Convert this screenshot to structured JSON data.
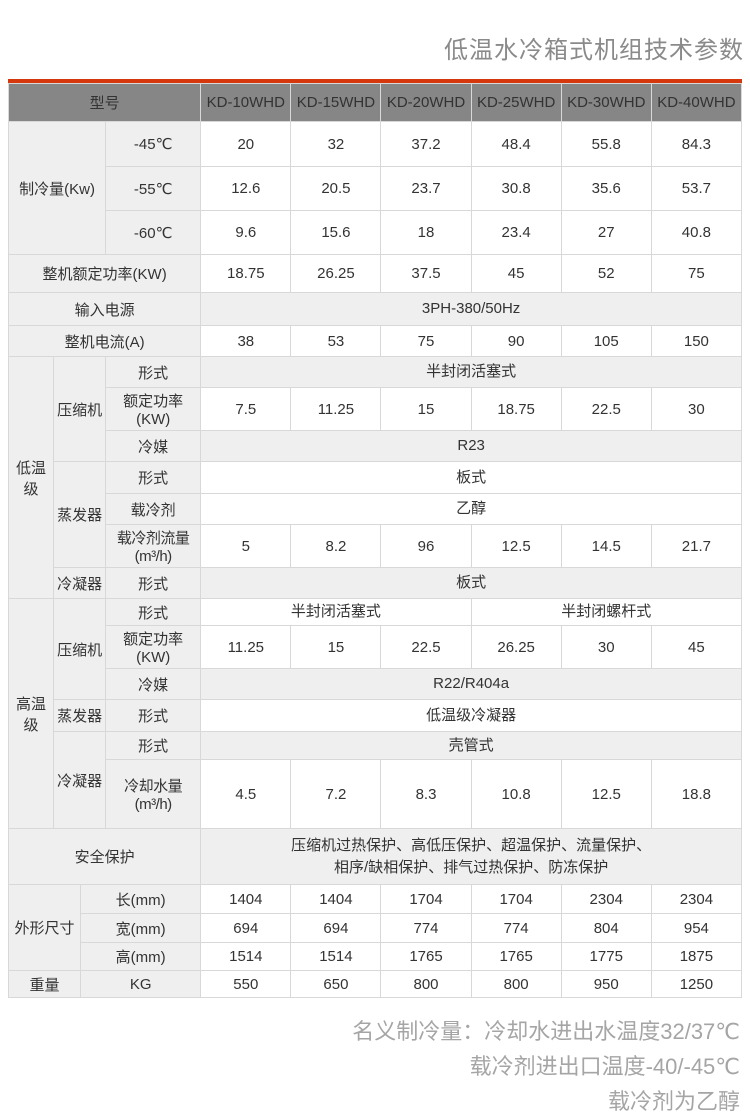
{
  "page": {
    "title": "低温水冷箱式机组技术参数"
  },
  "colors": {
    "accent": "#d6380e",
    "header_bg": "#868686",
    "label_bg": "#efefef",
    "border": "#d8d8d8",
    "title_gray": "#8a8a8a",
    "footnote_gray": "#a5a5a5"
  },
  "table": {
    "header": {
      "model_label": "型号",
      "models": [
        "KD-10WHD",
        "KD-15WHD",
        "KD-20WHD",
        "KD-25WHD",
        "KD-30WHD",
        "KD-40WHD"
      ]
    },
    "rows": [
      {
        "cells": [
          {
            "t": "制冷量(Kw)",
            "cs": 3,
            "rs": 3,
            "k": "lbl"
          },
          {
            "t": "-45℃",
            "k": "lbl"
          },
          {
            "t": "20"
          },
          {
            "t": "32"
          },
          {
            "t": "37.2"
          },
          {
            "t": "48.4"
          },
          {
            "t": "55.8"
          },
          {
            "t": "84.3"
          }
        ]
      },
      {
        "cells": [
          {
            "t": "-55℃",
            "k": "lbl"
          },
          {
            "t": "12.6"
          },
          {
            "t": "20.5"
          },
          {
            "t": "23.7"
          },
          {
            "t": "30.8"
          },
          {
            "t": "35.6"
          },
          {
            "t": "53.7"
          }
        ]
      },
      {
        "cells": [
          {
            "t": "-60℃",
            "k": "lbl"
          },
          {
            "t": "9.6"
          },
          {
            "t": "15.6"
          },
          {
            "t": "18"
          },
          {
            "t": "23.4"
          },
          {
            "t": "27"
          },
          {
            "t": "40.8"
          }
        ]
      },
      {
        "cells": [
          {
            "t": "整机额定功率(KW)",
            "cs": 4,
            "k": "lbl"
          },
          {
            "t": "18.75"
          },
          {
            "t": "26.25"
          },
          {
            "t": "37.5"
          },
          {
            "t": "45"
          },
          {
            "t": "52"
          },
          {
            "t": "75"
          }
        ]
      },
      {
        "cells": [
          {
            "t": "输入电源",
            "cs": 4,
            "k": "lbl"
          },
          {
            "t": "3PH-380/50Hz",
            "cs": 6,
            "k": "s"
          }
        ]
      },
      {
        "cells": [
          {
            "t": "整机电流(A)",
            "cs": 4,
            "k": "lbl"
          },
          {
            "t": "38"
          },
          {
            "t": "53"
          },
          {
            "t": "75"
          },
          {
            "t": "90"
          },
          {
            "t": "105"
          },
          {
            "t": "150"
          }
        ]
      },
      {
        "cells": [
          {
            "t": "低温级",
            "rs": 7,
            "k": "lbl"
          },
          {
            "t": "压缩机",
            "cs": 2,
            "rs": 3,
            "k": "lbl"
          },
          {
            "t": "形式",
            "k": "lbl"
          },
          {
            "t": "半封闭活塞式",
            "cs": 6,
            "k": "s"
          }
        ]
      },
      {
        "cells": [
          {
            "t": "额定功率(KW)",
            "k": "lbl"
          },
          {
            "t": "7.5"
          },
          {
            "t": "11.25"
          },
          {
            "t": "15"
          },
          {
            "t": "18.75"
          },
          {
            "t": "22.5"
          },
          {
            "t": "30"
          }
        ]
      },
      {
        "cells": [
          {
            "t": "冷媒",
            "k": "lbl"
          },
          {
            "t": "R23",
            "cs": 6,
            "k": "s"
          }
        ]
      },
      {
        "cells": [
          {
            "t": "蒸发器",
            "cs": 2,
            "rs": 3,
            "k": "lbl"
          },
          {
            "t": "形式",
            "k": "lbl"
          },
          {
            "t": "板式",
            "cs": 6,
            "k": "w"
          }
        ]
      },
      {
        "cells": [
          {
            "t": "载冷剂",
            "k": "lbl"
          },
          {
            "t": "乙醇",
            "cs": 6,
            "k": "w"
          }
        ]
      },
      {
        "cells": [
          {
            "t": "载冷剂流量(m³/h)",
            "k": "lbl"
          },
          {
            "t": "5"
          },
          {
            "t": "8.2"
          },
          {
            "t": "96"
          },
          {
            "t": "12.5"
          },
          {
            "t": "14.5"
          },
          {
            "t": "21.7"
          }
        ]
      },
      {
        "cells": [
          {
            "t": "冷凝器",
            "cs": 2,
            "k": "lbl"
          },
          {
            "t": "形式",
            "k": "lbl"
          },
          {
            "t": "板式",
            "cs": 6,
            "k": "s"
          }
        ]
      },
      {
        "cells": [
          {
            "t": "高温级",
            "rs": 6,
            "k": "lbl"
          },
          {
            "t": "压缩机",
            "cs": 2,
            "rs": 3,
            "k": "lbl"
          },
          {
            "t": "形式",
            "k": "lbl"
          },
          {
            "t": "半封闭活塞式",
            "cs": 3,
            "k": "w"
          },
          {
            "t": "半封闭螺杆式",
            "cs": 3,
            "k": "w"
          }
        ]
      },
      {
        "cells": [
          {
            "t": "额定功率(KW)",
            "k": "lbl"
          },
          {
            "t": "11.25"
          },
          {
            "t": "15"
          },
          {
            "t": "22.5"
          },
          {
            "t": "26.25"
          },
          {
            "t": "30"
          },
          {
            "t": "45"
          }
        ]
      },
      {
        "cells": [
          {
            "t": "冷媒",
            "k": "lbl"
          },
          {
            "t": "R22/R404a",
            "cs": 6,
            "k": "s"
          }
        ]
      },
      {
        "cells": [
          {
            "t": "蒸发器",
            "cs": 2,
            "k": "lbl"
          },
          {
            "t": "形式",
            "k": "lbl"
          },
          {
            "t": "低温级冷凝器",
            "cs": 6,
            "k": "w"
          }
        ]
      },
      {
        "cells": [
          {
            "t": "冷凝器",
            "cs": 2,
            "rs": 2,
            "k": "lbl"
          },
          {
            "t": "形式",
            "k": "lbl"
          },
          {
            "t": "壳管式",
            "cs": 6,
            "k": "s"
          }
        ]
      },
      {
        "cells": [
          {
            "t": "冷却水量(m³/h)",
            "k": "lbl"
          },
          {
            "t": "4.5"
          },
          {
            "t": "7.2"
          },
          {
            "t": "8.3"
          },
          {
            "t": "10.8"
          },
          {
            "t": "12.5"
          },
          {
            "t": "18.8"
          }
        ]
      },
      {
        "cells": [
          {
            "t": "安全保护",
            "cs": 4,
            "k": "lbl"
          },
          {
            "t": "压缩机过热保护、高低压保护、超温保护、流量保护、\n相序/缺相保护、排气过热保护、防冻保护",
            "cs": 6,
            "k": "s"
          }
        ]
      },
      {
        "cells": [
          {
            "t": "外形尺寸",
            "cs": 2,
            "rs": 3,
            "k": "lbl"
          },
          {
            "t": "长(mm)",
            "cs": 2,
            "k": "lbl"
          },
          {
            "t": "1404"
          },
          {
            "t": "1404"
          },
          {
            "t": "1704"
          },
          {
            "t": "1704"
          },
          {
            "t": "2304"
          },
          {
            "t": "2304"
          }
        ]
      },
      {
        "cells": [
          {
            "t": "宽(mm)",
            "cs": 2,
            "k": "lbl"
          },
          {
            "t": "694"
          },
          {
            "t": "694"
          },
          {
            "t": "774"
          },
          {
            "t": "774"
          },
          {
            "t": "804"
          },
          {
            "t": "954"
          }
        ]
      },
      {
        "cells": [
          {
            "t": "高(mm)",
            "cs": 2,
            "k": "lbl"
          },
          {
            "t": "1514"
          },
          {
            "t": "1514"
          },
          {
            "t": "1765"
          },
          {
            "t": "1765"
          },
          {
            "t": "1775"
          },
          {
            "t": "1875"
          }
        ]
      },
      {
        "cells": [
          {
            "t": "重量",
            "cs": 2,
            "k": "lbl"
          },
          {
            "t": "KG",
            "cs": 2,
            "k": "lbl"
          },
          {
            "t": "550"
          },
          {
            "t": "650"
          },
          {
            "t": "800"
          },
          {
            "t": "800"
          },
          {
            "t": "950"
          },
          {
            "t": "1250"
          }
        ]
      }
    ]
  },
  "footer": {
    "lines": [
      "名义制冷量：冷却水进出水温度32/37℃",
      "载冷剂进出口温度-40/-45℃",
      "载冷剂为乙醇"
    ]
  }
}
